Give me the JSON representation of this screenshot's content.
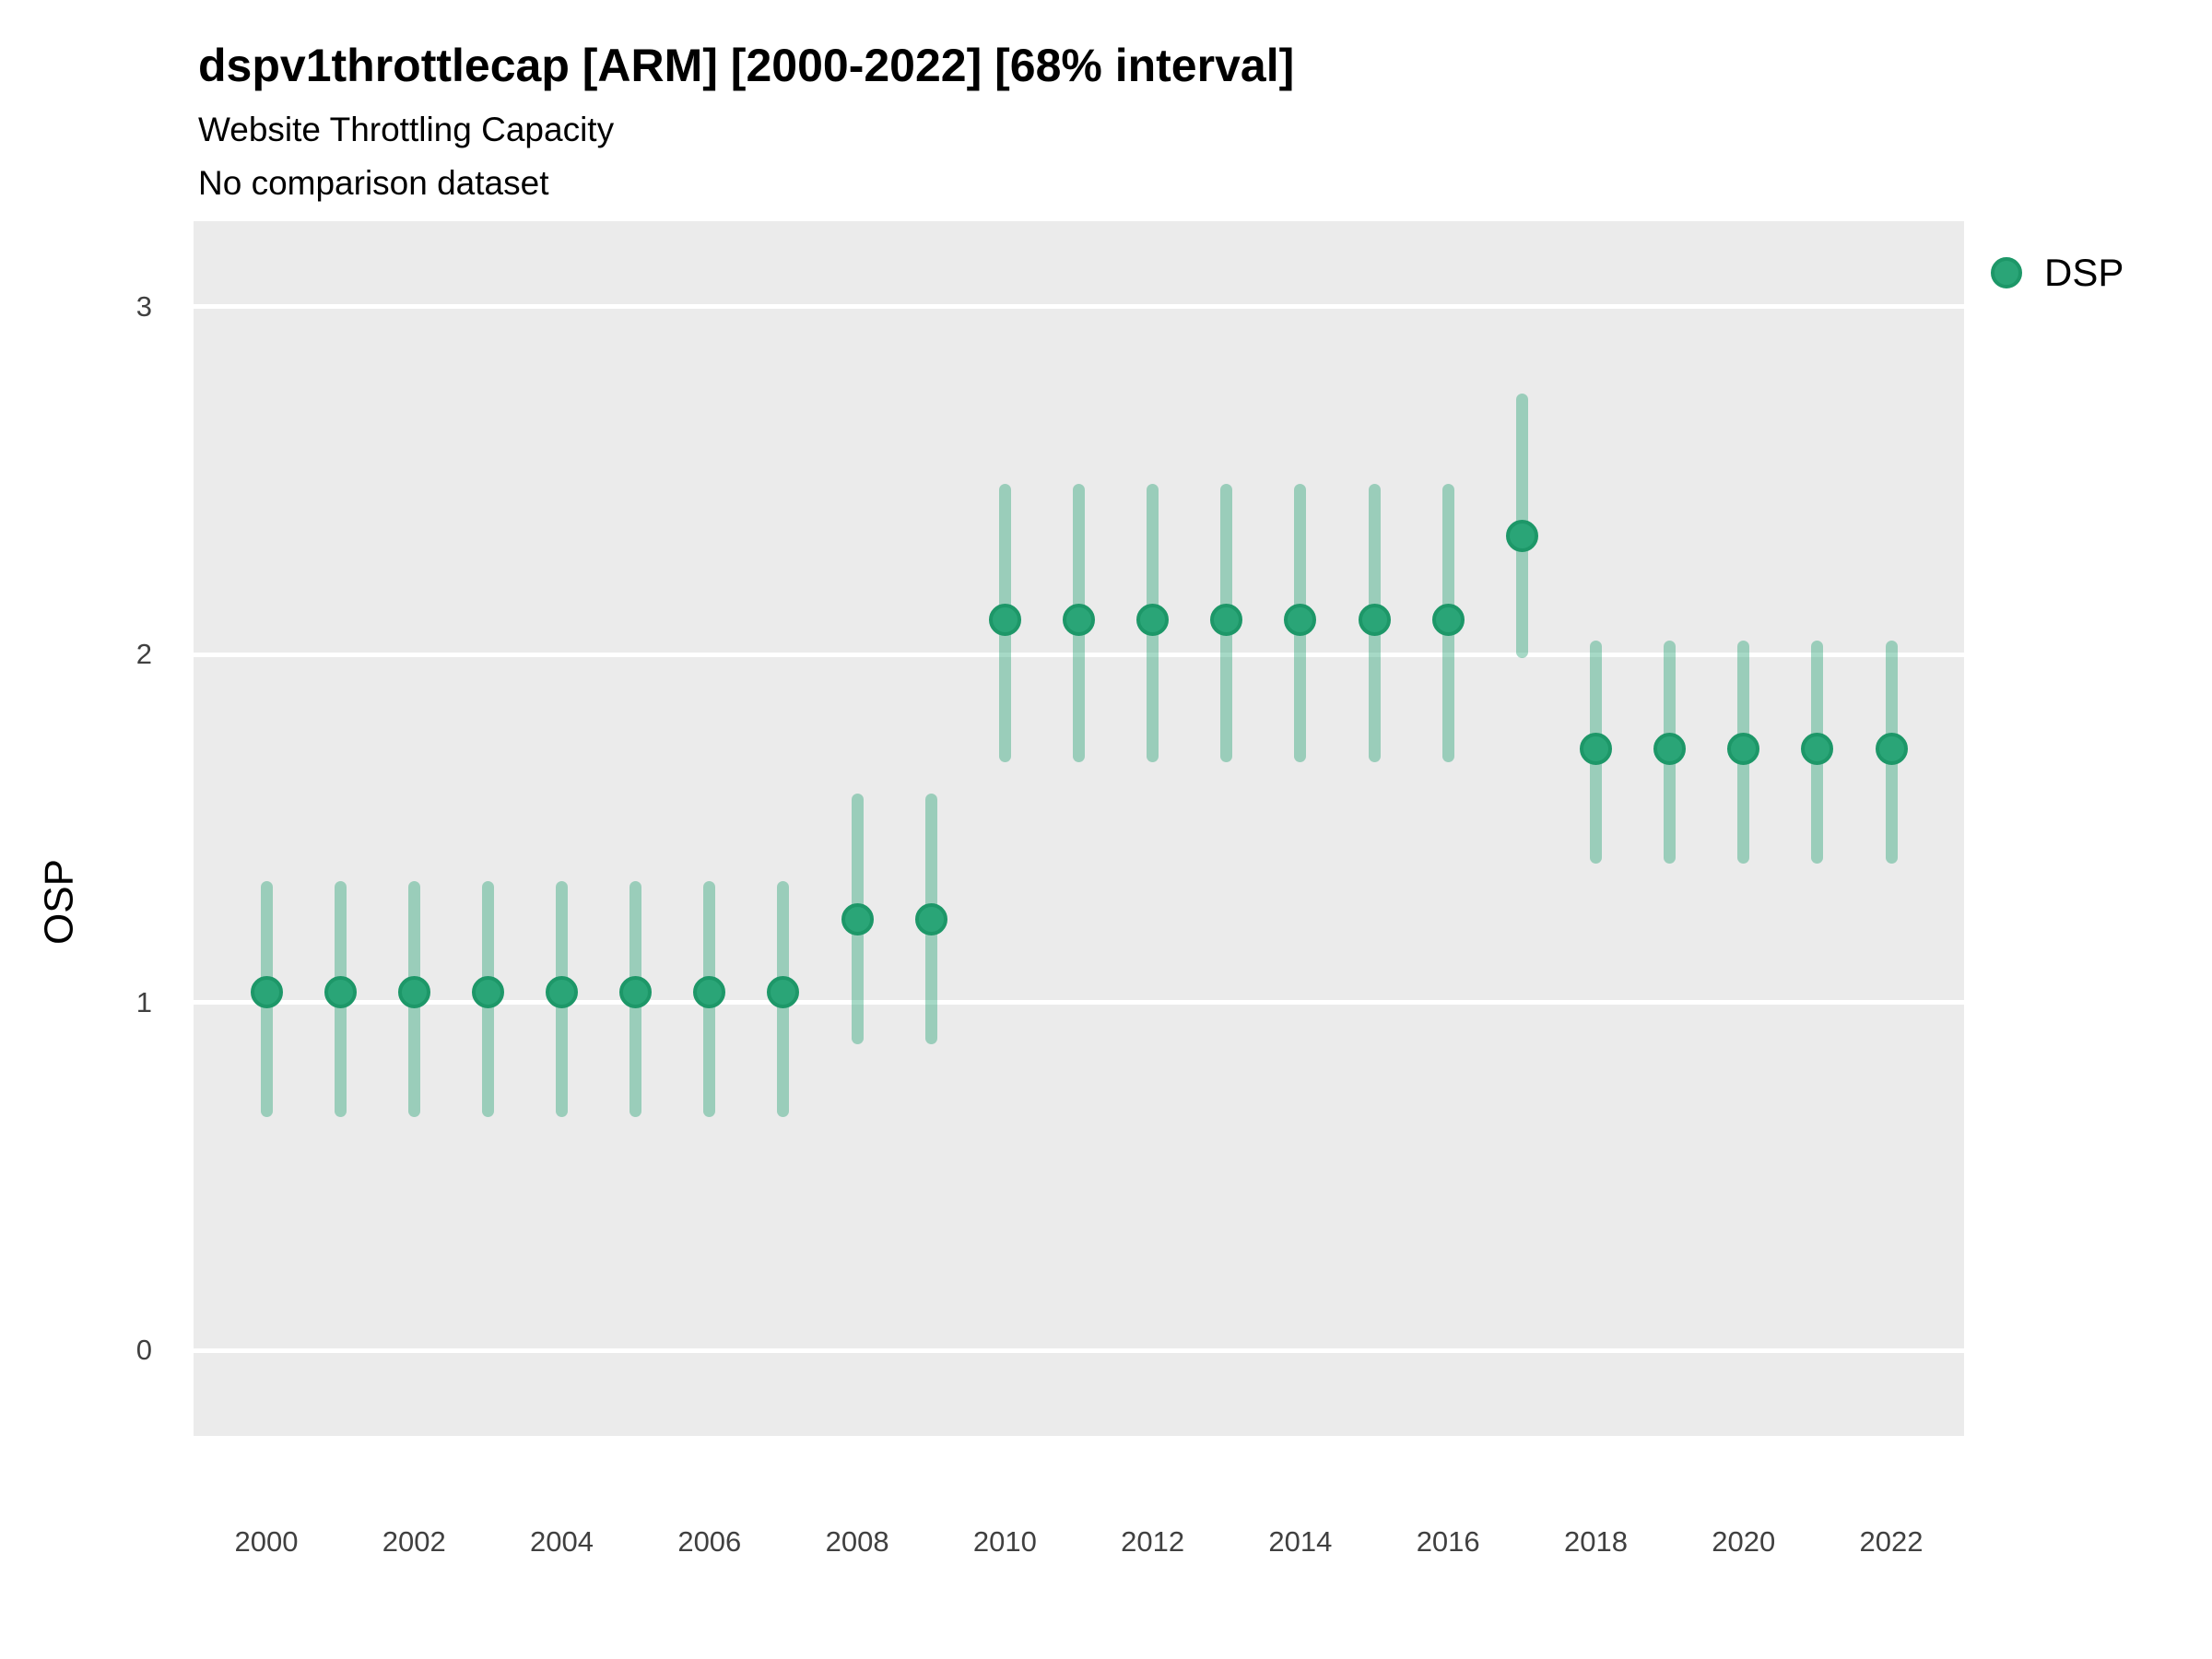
{
  "header": {
    "title": "dspv1throttlecap [ARM] [2000-2022] [68% interval]",
    "subtitle": "Website Throttling Capacity",
    "note": "No comparison dataset"
  },
  "legend": {
    "label": "DSP"
  },
  "colors": {
    "page_bg": "#ffffff",
    "panel_bg": "#ebebeb",
    "gridline": "#ffffff",
    "point_fill": "#2aa577",
    "point_border": "#1d9768",
    "bar_fill": "rgba(42,165,119,0.42)",
    "tick_text": "#404040",
    "text": "#000000"
  },
  "chart_data": {
    "type": "pointrange",
    "title": "dspv1throttlecap [ARM] [2000-2022] [68% interval]",
    "subtitle": "Website Throttling Capacity",
    "note": "No comparison dataset",
    "interval_label": "68% interval",
    "xlabel": "",
    "ylabel": "OSP",
    "ylim": [
      -0.245,
      3.245
    ],
    "yticks": [
      0,
      1,
      2,
      3
    ],
    "xticks": [
      2000,
      2002,
      2004,
      2006,
      2008,
      2010,
      2012,
      2014,
      2016,
      2018,
      2020,
      2022
    ],
    "grid": "horizontal-major-only",
    "legend_position": "right-top",
    "series": [
      {
        "name": "DSP",
        "color": "#2aa577",
        "x": [
          2000,
          2001,
          2002,
          2003,
          2004,
          2005,
          2006,
          2007,
          2008,
          2009,
          2010,
          2011,
          2012,
          2013,
          2014,
          2015,
          2016,
          2017,
          2018,
          2019,
          2020,
          2021,
          2022
        ],
        "values": [
          1.03,
          1.03,
          1.03,
          1.03,
          1.03,
          1.03,
          1.03,
          1.03,
          1.24,
          1.24,
          2.1,
          2.1,
          2.1,
          2.1,
          2.1,
          2.1,
          2.1,
          2.34,
          1.73,
          1.73,
          1.73,
          1.73,
          1.73
        ],
        "interval_low": [
          0.67,
          0.67,
          0.67,
          0.67,
          0.67,
          0.67,
          0.67,
          0.67,
          0.88,
          0.88,
          1.69,
          1.69,
          1.69,
          1.69,
          1.69,
          1.69,
          1.69,
          1.99,
          1.4,
          1.4,
          1.4,
          1.4,
          1.4
        ],
        "interval_high": [
          1.35,
          1.35,
          1.35,
          1.35,
          1.35,
          1.35,
          1.35,
          1.35,
          1.6,
          1.6,
          2.49,
          2.49,
          2.49,
          2.49,
          2.49,
          2.49,
          2.49,
          2.75,
          2.04,
          2.04,
          2.04,
          2.04,
          2.04
        ]
      }
    ]
  }
}
